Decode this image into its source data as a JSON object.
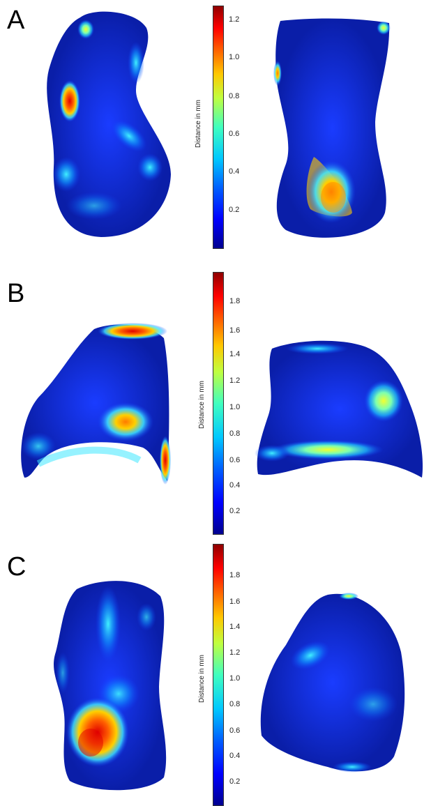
{
  "panels": [
    {
      "letter": "A",
      "colorbar": {
        "title": "Distance in mm",
        "ticks": [
          "1.2",
          "1.0",
          "0.8",
          "0.6",
          "0.4",
          "0.2"
        ]
      }
    },
    {
      "letter": "B",
      "colorbar": {
        "title": "Distance in mm",
        "ticks": [
          "1.8",
          "1.6",
          "1.4",
          "1.2",
          "1.0",
          "0.8",
          "0.6",
          "0.4",
          "0.2"
        ]
      }
    },
    {
      "letter": "C",
      "colorbar": {
        "title": "Distance in mm",
        "ticks": [
          "1.8",
          "1.6",
          "1.4",
          "1.2",
          "1.0",
          "0.8",
          "0.6",
          "0.4",
          "0.2"
        ]
      }
    }
  ],
  "colors": {
    "low": "#00008f",
    "base": "#0a2cd8",
    "mid": "#00c8ff",
    "high": "#ffc800",
    "peak": "#ff0000"
  }
}
